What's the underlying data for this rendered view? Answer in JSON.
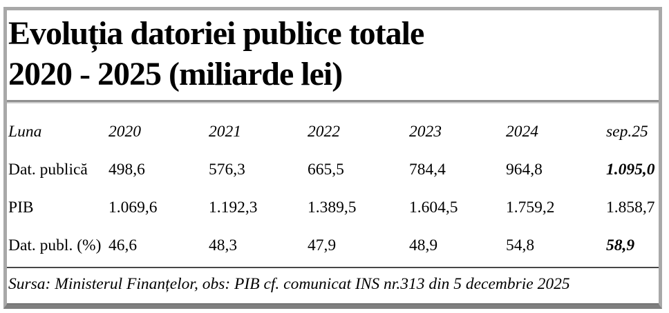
{
  "title": {
    "line1": "Evoluția datoriei publice totale",
    "line2": "2020 - 2025 (miliarde lei)"
  },
  "chart_data": {
    "type": "table",
    "title": "Evoluția datoriei publice totale 2020 - 2025 (miliarde lei)",
    "columns": [
      "Luna",
      "2020",
      "2021",
      "2022",
      "2023",
      "2024",
      "sep.25"
    ],
    "rows": [
      [
        "Dat. publică",
        "498,6",
        "576,3",
        "665,5",
        "784,4",
        "964,8",
        "1.095,0"
      ],
      [
        "PIB",
        "1.069,6",
        "1.192,3",
        "1.389,5",
        "1.604,5",
        "1.759,2",
        "1.858,7"
      ],
      [
        "Dat. publ. (%)",
        "46,6",
        "48,3",
        "47,9",
        "48,9",
        "54,8",
        "58,9"
      ]
    ],
    "series": [
      {
        "name": "Dat. publică",
        "values": [
          498.6,
          576.3,
          665.5,
          784.4,
          964.8,
          1095.0
        ]
      },
      {
        "name": "PIB",
        "values": [
          1069.6,
          1192.3,
          1389.5,
          1604.5,
          1759.2,
          1858.7
        ]
      },
      {
        "name": "Dat. publ. (%)",
        "values": [
          46.6,
          48.3,
          47.9,
          48.9,
          54.8,
          58.9
        ]
      }
    ],
    "x_categories": [
      "2020",
      "2021",
      "2022",
      "2023",
      "2024",
      "sep.25"
    ],
    "source": "Sursa: Ministerul Finanțelor, obs: PIB cf. comunicat INS nr.313 din 5 decembrie 2025"
  },
  "colors": {
    "background": "#ffffff",
    "text": "#000000",
    "frame_border": "#a8a8a8",
    "frame_border_bottom": "#7f7f7f",
    "title_rule": "#909090",
    "source_divider": "#464646"
  }
}
